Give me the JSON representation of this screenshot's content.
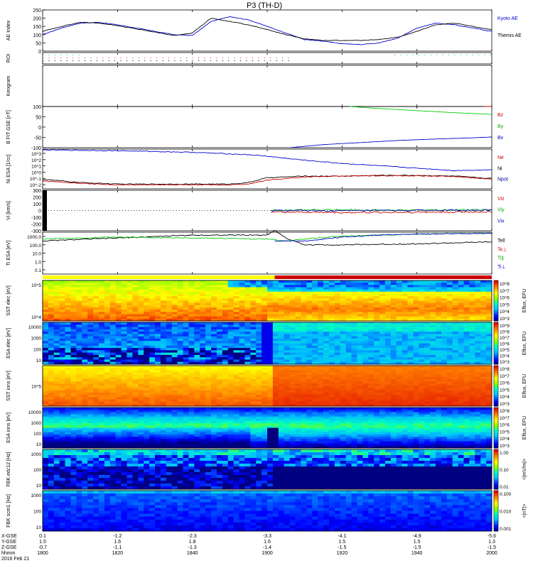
{
  "title": "P3 (TH-D)",
  "footer": {
    "row_labels": [
      "X-GSE",
      "Y-GSE",
      "Z-GSE",
      "hhmm",
      "2016 Feb 21"
    ],
    "columns": [
      {
        "x": "0.1",
        "y": "1.5",
        "z": "-0.7",
        "t": "1800"
      },
      {
        "x": "-1.2",
        "y": "1.6",
        "z": "-1.1",
        "t": "1820"
      },
      {
        "x": "-2.3",
        "y": "1.8",
        "z": "-1.3",
        "t": "1840"
      },
      {
        "x": "-3.3",
        "y": "1.6",
        "z": "-1.4",
        "t": "1900"
      },
      {
        "x": "-4.1",
        "y": "1.5",
        "z": "-1.5",
        "t": "1920"
      },
      {
        "x": "-4.9",
        "y": "1.5",
        "z": "-1.5",
        "t": "1940"
      },
      {
        "x": "-5.6",
        "y": "1.3",
        "z": "-1.5",
        "t": "2000"
      }
    ]
  },
  "chart_data": {
    "type": "line",
    "time_axis": {
      "start": "1800",
      "end": "2000",
      "ticks": [
        "1800",
        "1820",
        "1840",
        "1900",
        "1920",
        "1940",
        "2000"
      ]
    },
    "panels": [
      {
        "id": "ae",
        "ylabel": "AE Index",
        "ylim": [
          0,
          250
        ],
        "yticks": [
          "250",
          "200",
          "150",
          "100",
          "50",
          "0"
        ],
        "legend": [
          {
            "name": "Kyoto AE",
            "color": "#0000cc"
          },
          {
            "name": "Themis AE",
            "color": "#000000"
          }
        ],
        "series": [
          {
            "name": "Kyoto AE",
            "color": "#0000cc",
            "t": [
              0,
              5,
              10,
              15,
              20,
              25,
              30,
              35,
              40,
              45,
              50,
              55,
              60,
              65,
              70,
              75,
              80,
              85,
              90,
              95,
              100,
              105,
              110,
              115,
              120
            ],
            "values": [
              100,
              140,
              170,
              175,
              160,
              140,
              120,
              100,
              95,
              180,
              210,
              190,
              150,
              110,
              70,
              60,
              45,
              40,
              50,
              80,
              140,
              170,
              160,
              140,
              120
            ]
          },
          {
            "name": "Themis AE",
            "color": "#000000",
            "t": [
              0,
              5,
              10,
              15,
              20,
              25,
              30,
              35,
              40,
              45,
              50,
              55,
              60,
              65,
              70,
              75,
              80,
              85,
              90,
              95,
              100,
              105,
              110,
              115,
              120
            ],
            "values": [
              120,
              150,
              175,
              170,
              155,
              135,
              115,
              95,
              110,
              200,
              180,
              160,
              130,
              100,
              75,
              65,
              65,
              65,
              70,
              85,
              120,
              160,
              170,
              150,
              130
            ]
          }
        ]
      },
      {
        "id": "roi",
        "ylabel": "ROI",
        "kind": "dots"
      },
      {
        "id": "keogram",
        "ylabel": "Keogram",
        "kind": "empty"
      },
      {
        "id": "bfit",
        "ylabel": "B FIT GSE [nT]",
        "ylim": [
          -100,
          100
        ],
        "yticks": [
          "100",
          "50",
          "0",
          "-50",
          "-100"
        ],
        "legend": [
          {
            "name": "Bz",
            "color": "#cc0000"
          },
          {
            "name": "By",
            "color": "#00aa00"
          },
          {
            "name": "Bx",
            "color": "#0000cc"
          }
        ],
        "series": [
          {
            "name": "Bz",
            "color": "#cc0000",
            "t": [
              118,
              120
            ],
            "values": [
              100,
              100
            ]
          },
          {
            "name": "By",
            "color": "#00cc00",
            "t": [
              82,
              90,
              100,
              110,
              120
            ],
            "values": [
              100,
              90,
              80,
              70,
              62
            ]
          },
          {
            "name": "Bx",
            "color": "#0000cc",
            "t": [
              66,
              75,
              85,
              95,
              105,
              115,
              120
            ],
            "values": [
              -100,
              -85,
              -75,
              -65,
              -58,
              -52,
              -48
            ]
          }
        ]
      },
      {
        "id": "ni",
        "ylabel": "Ni ESA [1/cc]",
        "ylim": [
          -2,
          3
        ],
        "log": true,
        "ytick_labels": [
          "10^3",
          "10^2",
          "10^1",
          "10^0",
          "10^-1",
          "10^-2"
        ],
        "legend": [
          {
            "name": "Ne",
            "color": "#cc0000"
          },
          {
            "name": "Ni",
            "color": "#000000"
          },
          {
            "name": "Npot",
            "color": "#000099"
          }
        ],
        "series": [
          {
            "name": "Npot",
            "color": "#0000cc",
            "t": [
              0,
              20,
              40,
              55,
              60,
              70,
              80,
              90,
              100,
              110,
              120
            ],
            "values": [
              2.9,
              2.8,
              2.6,
              2.3,
              2.1,
              1.6,
              1.2,
              0.9,
              0.6,
              0.3,
              0.4
            ]
          },
          {
            "name": "Ni",
            "color": "#000000",
            "t": [
              0,
              10,
              20,
              30,
              40,
              50,
              55,
              60,
              70,
              80,
              90,
              100,
              110,
              120
            ],
            "values": [
              -0.8,
              -1.2,
              -1.4,
              -1.4,
              -1.4,
              -1.4,
              -1.2,
              -0.6,
              -0.4,
              -0.4,
              -0.3,
              -0.3,
              -0.4,
              -0.7
            ]
          },
          {
            "name": "Ne",
            "color": "#cc0000",
            "t": [
              0,
              10,
              20,
              30,
              40,
              50,
              55,
              60,
              70,
              80,
              90,
              100,
              110,
              120
            ],
            "values": [
              -1.0,
              -1.3,
              -1.5,
              -1.5,
              -1.5,
              -1.5,
              -1.4,
              -0.9,
              -0.5,
              -0.4,
              -0.35,
              -0.35,
              -0.45,
              -0.8
            ]
          }
        ]
      },
      {
        "id": "vi",
        "ylabel": "Vi [km/s]",
        "ylim": [
          -300,
          300
        ],
        "yticks": [
          "300",
          "200",
          "100",
          "0",
          "-100",
          "-200",
          "-300"
        ],
        "legend": [
          {
            "name": "Viz",
            "color": "#cc0000"
          },
          {
            "name": "Viy",
            "color": "#00aa00"
          },
          {
            "name": "Vix",
            "color": "#0000cc"
          }
        ],
        "series": [
          {
            "name": "Viz",
            "color": "#cc0000",
            "t": [
              61,
              80,
              100,
              120
            ],
            "values": [
              -20,
              -30,
              -25,
              -20
            ]
          },
          {
            "name": "Viy",
            "color": "#00cc00",
            "t": [
              61,
              80,
              100,
              120
            ],
            "values": [
              5,
              10,
              5,
              10
            ]
          },
          {
            "name": "Vix",
            "color": "#0000cc",
            "t": [
              61,
              80,
              100,
              120
            ],
            "values": [
              0,
              -5,
              0,
              5
            ]
          }
        ]
      },
      {
        "id": "ti",
        "ylabel": "Ti ESA [eV]",
        "ylim": [
          -1,
          3.3
        ],
        "log": true,
        "ytick_labels": [
          "1000.0",
          "100.0",
          "10.0",
          "1.0",
          "0.1"
        ],
        "legend": [
          {
            "name": "Tell",
            "color": "#000000"
          },
          {
            "name": "Te⊥",
            "color": "#cc0000"
          },
          {
            "name": "Ti∥",
            "color": "#00aa00"
          },
          {
            "name": "Ti⊥",
            "color": "#0000cc"
          }
        ],
        "series": [
          {
            "name": "Tell",
            "color": "#000000",
            "t": [
              0,
              20,
              40,
              60,
              62,
              65,
              70,
              80,
              100,
              120
            ],
            "values": [
              2.4,
              2.7,
              3.0,
              3.0,
              3.5,
              2.7,
              2.0,
              2.0,
              2.1,
              2.3
            ]
          },
          {
            "name": "Ti∥",
            "color": "#00cc00",
            "t": [
              0,
              20,
              40,
              60,
              65,
              70,
              80,
              100,
              120
            ],
            "values": [
              2.6,
              2.8,
              2.7,
              2.6,
              2.4,
              2.6,
              2.9,
              3.1,
              3.2
            ]
          },
          {
            "name": "Ti⊥",
            "color": "#0000cc",
            "t": [
              62,
              70,
              80,
              90,
              100,
              120
            ],
            "values": [
              2.4,
              2.4,
              2.8,
              3.0,
              3.1,
              3.2
            ]
          }
        ]
      },
      {
        "id": "mode",
        "kind": "modebar",
        "segments": [
          {
            "from": 0,
            "to": 62,
            "color": "#ffff00"
          },
          {
            "from": 62,
            "to": 120,
            "color": "#cc0000"
          }
        ]
      },
      {
        "id": "sst_e",
        "ylabel": "SST elec [eV]",
        "kind": "spectrogram",
        "variant": "sst_e",
        "ytick_labels": [
          "10^5",
          "10^4"
        ]
      },
      {
        "id": "esa_e",
        "ylabel": "ESA elec [eV]",
        "kind": "spectrogram",
        "variant": "esa_e",
        "ytick_labels": [
          "10000",
          "1000",
          "100",
          "10"
        ]
      },
      {
        "id": "sst_i",
        "ylabel": "SST ions [eV]",
        "kind": "spectrogram",
        "variant": "sst_i",
        "ytick_labels": [
          "10^5"
        ]
      },
      {
        "id": "esa_i",
        "ylabel": "ESA ions [eV]",
        "kind": "spectrogram",
        "variant": "esa_i",
        "ytick_labels": [
          "10000",
          "1000",
          "100",
          "10"
        ]
      },
      {
        "id": "fbk_e",
        "ylabel": "FBK edc12 [Hz]",
        "kind": "spectrogram",
        "variant": "fbk_e",
        "ytick_labels": [
          "1000",
          "100",
          "10"
        ]
      },
      {
        "id": "fbk_b",
        "ylabel": "FBK scm1 [Hz]",
        "kind": "spectrogram",
        "variant": "fbk_b",
        "ytick_labels": [
          "1000",
          "100",
          "10"
        ]
      }
    ],
    "colorbars": [
      {
        "panel": "sst_e",
        "label": "Eflux, EFU",
        "ticks": [
          "10^8",
          "10^7",
          "10^6",
          "10^5",
          "10^4",
          "10^3"
        ]
      },
      {
        "panel": "esa_e",
        "label": "Eflux, EFU",
        "ticks": [
          "10^9",
          "10^8",
          "10^7",
          "10^6",
          "10^5",
          "10^4",
          "10^3"
        ]
      },
      {
        "panel": "sst_i",
        "label": "Eflux, EFU",
        "ticks": [
          "10^8",
          "10^7",
          "10^6",
          "10^5",
          "10^4",
          "10^3"
        ]
      },
      {
        "panel": "esa_i",
        "label": "Eflux, EFU",
        "ticks": [
          "10^8",
          "10^7",
          "10^6",
          "10^5",
          "10^4",
          "10^3"
        ]
      },
      {
        "panel": "fbk_e",
        "label": "<|mV/m|>",
        "ticks": [
          "1.00",
          "0.10",
          "0.01"
        ]
      },
      {
        "panel": "fbk_b",
        "label": "<|nT|>",
        "ticks": [
          "0.100",
          "0.010",
          "0.001"
        ]
      }
    ]
  }
}
